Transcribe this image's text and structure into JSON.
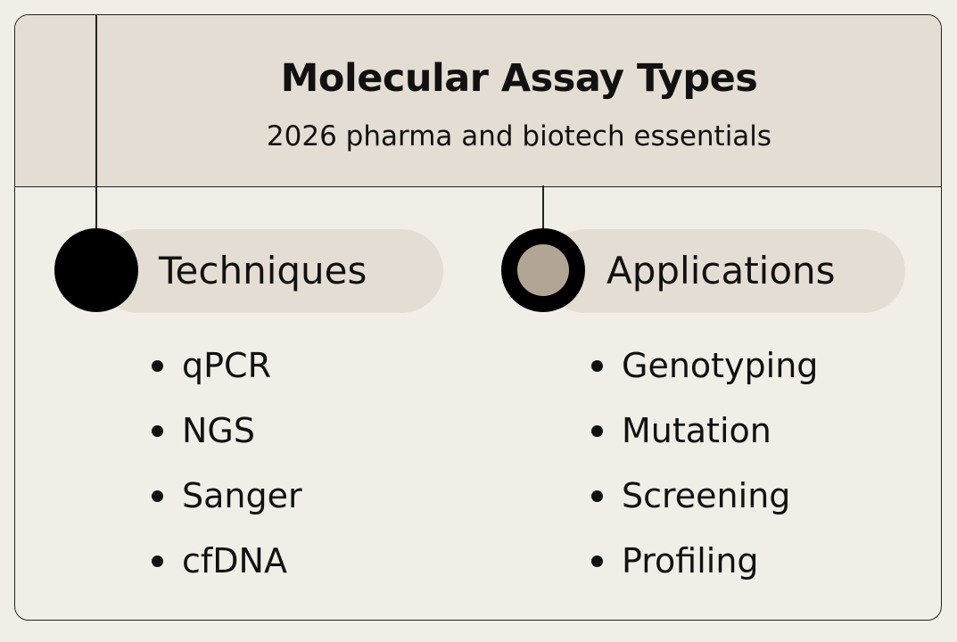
{
  "header": {
    "title": "Molecular Assay Types",
    "subtitle": "2026 pharma and biotech essentials"
  },
  "columns": [
    {
      "label": "Techniques",
      "marker": "solid-black-circle",
      "items": [
        "qPCR",
        "NGS",
        "Sanger",
        "cfDNA"
      ]
    },
    {
      "label": "Applications",
      "marker": "ring-circle",
      "items": [
        "Genotyping",
        "Mutation",
        "Screening",
        "Profiling"
      ]
    }
  ],
  "colors": {
    "header_bg": "#e4ddd3",
    "page_bg": "#f1eee8",
    "ring_fill": "#b3a595",
    "ink": "#111111"
  }
}
